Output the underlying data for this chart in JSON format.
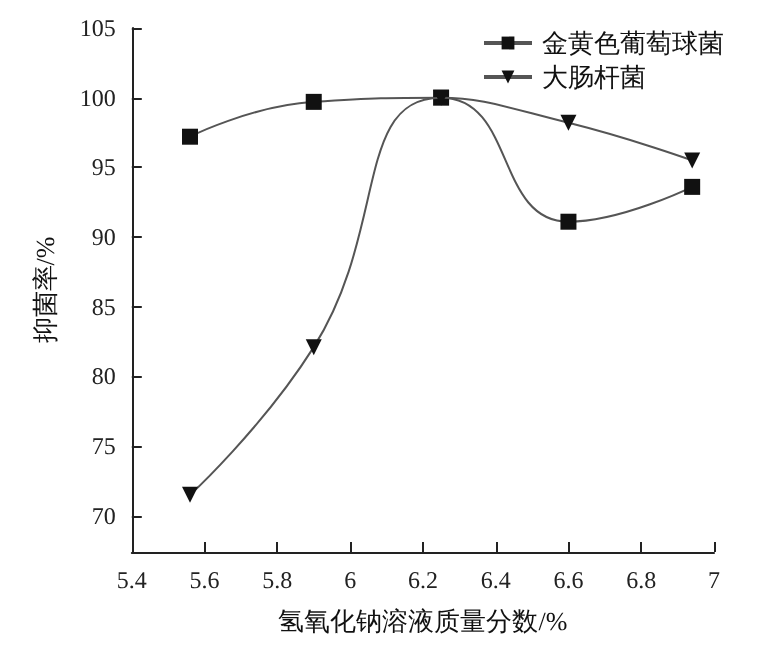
{
  "chart_data": {
    "type": "line",
    "xlabel": "氢氧化钠溶液质量分数/%",
    "ylabel": "抑菌率/%",
    "xlim": [
      5.4,
      7.0
    ],
    "xticks": [
      5.4,
      5.6,
      5.8,
      6.0,
      6.2,
      6.4,
      6.6,
      6.8,
      7.0
    ],
    "ylim": [
      67.4,
      105
    ],
    "yticks": [
      70,
      75,
      80,
      85,
      90,
      95,
      100,
      105
    ],
    "x": [
      5.56,
      5.9,
      6.25,
      6.6,
      6.94
    ],
    "series": [
      {
        "name": "金黄色葡萄球菌",
        "color": "#111111",
        "marker": "square",
        "values": [
          97.2,
          99.7,
          100.0,
          91.1,
          93.6
        ]
      },
      {
        "name": "大肠杆菌",
        "color": "#111111",
        "marker": "triangle",
        "values": [
          71.5,
          82.1,
          100.0,
          98.2,
          95.5
        ]
      }
    ],
    "legend": "top right",
    "grid": false,
    "line_style": "solid"
  }
}
